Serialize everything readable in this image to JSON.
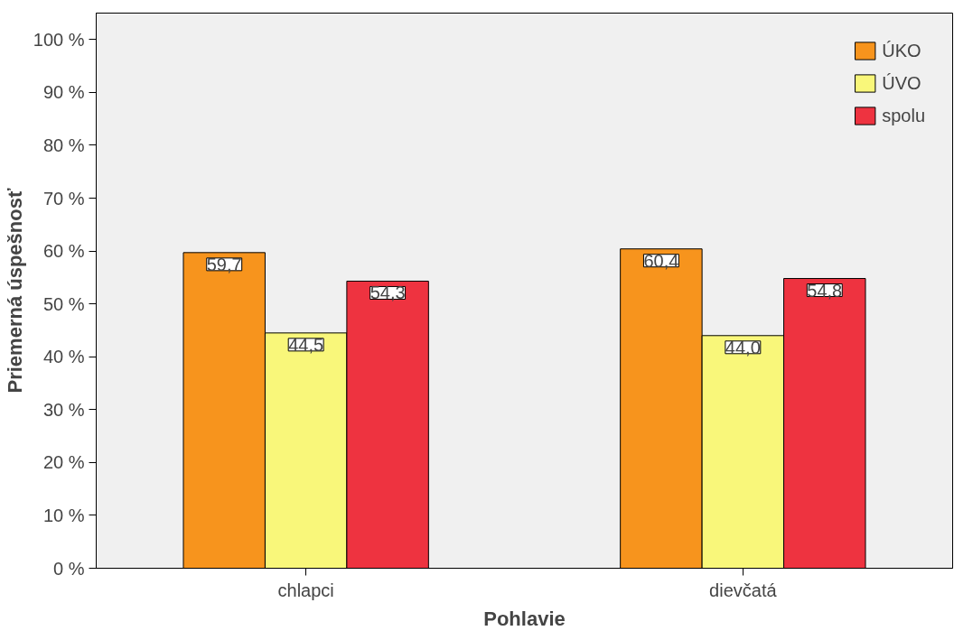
{
  "chart_data": {
    "type": "bar",
    "xlabel": "Pohlavie",
    "ylabel": "Priemerná úspešnosť",
    "categories": [
      "chlapci",
      "dievčatá"
    ],
    "series": [
      {
        "name": "ÚKO",
        "color": "#f7941d",
        "values": [
          59.7,
          60.4
        ],
        "value_labels": [
          "59,7",
          "60,4"
        ]
      },
      {
        "name": "ÚVO",
        "color": "#f9f77a",
        "values": [
          44.5,
          44.0
        ],
        "value_labels": [
          "44,5",
          "44,0"
        ]
      },
      {
        "name": "spolu",
        "color": "#ee3340",
        "values": [
          54.3,
          54.8
        ],
        "value_labels": [
          "54,3",
          "54,8"
        ]
      }
    ],
    "ylim": [
      0,
      105
    ],
    "yticks": [
      {
        "value": 0,
        "label": "0 %"
      },
      {
        "value": 10,
        "label": "10 %"
      },
      {
        "value": 20,
        "label": "20 %"
      },
      {
        "value": 30,
        "label": "30 %"
      },
      {
        "value": 40,
        "label": "40 %"
      },
      {
        "value": 50,
        "label": "50 %"
      },
      {
        "value": 60,
        "label": "60 %"
      },
      {
        "value": 70,
        "label": "70 %"
      },
      {
        "value": 80,
        "label": "80 %"
      },
      {
        "value": 90,
        "label": "90 %"
      },
      {
        "value": 100,
        "label": "100 %"
      }
    ],
    "grid": false,
    "legend": "top right"
  }
}
